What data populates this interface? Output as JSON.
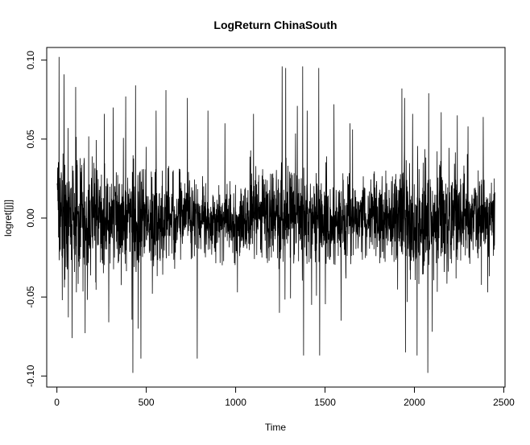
{
  "chart_data": {
    "type": "line",
    "title": "LogReturn ChinaSouth",
    "xlabel": "Time",
    "ylabel": "logret[[j]]",
    "xlim": [
      -57,
      2507
    ],
    "ylim": [
      -0.107,
      0.108
    ],
    "x_ticks": [
      0,
      500,
      1000,
      1500,
      2000,
      2500
    ],
    "x_tick_labels": [
      "0",
      "500",
      "1000",
      "1500",
      "2000",
      "2500"
    ],
    "y_ticks": [
      -0.1,
      -0.05,
      0.0,
      0.05,
      0.1
    ],
    "y_tick_labels": [
      "-0.10",
      "-0.05",
      "0.00",
      "0.05",
      "0.10"
    ],
    "grid": false,
    "legend": "none",
    "series_color": "#000000",
    "series": [
      {
        "n": 2450,
        "x_start": 1,
        "x_step": 1,
        "volatility_profile": [
          [
            0,
            0.024
          ],
          [
            100,
            0.022
          ],
          [
            200,
            0.018
          ],
          [
            300,
            0.018
          ],
          [
            400,
            0.022
          ],
          [
            500,
            0.018
          ],
          [
            600,
            0.016
          ],
          [
            700,
            0.014
          ],
          [
            800,
            0.012
          ],
          [
            900,
            0.012
          ],
          [
            1000,
            0.013
          ],
          [
            1100,
            0.014
          ],
          [
            1200,
            0.016
          ],
          [
            1300,
            0.018
          ],
          [
            1400,
            0.017
          ],
          [
            1500,
            0.015
          ],
          [
            1600,
            0.014
          ],
          [
            1700,
            0.013
          ],
          [
            1800,
            0.015
          ],
          [
            1900,
            0.018
          ],
          [
            2000,
            0.021
          ],
          [
            2100,
            0.021
          ],
          [
            2200,
            0.017
          ],
          [
            2300,
            0.015
          ],
          [
            2400,
            0.013
          ],
          [
            2450,
            0.013
          ]
        ],
        "extreme_points": [
          {
            "x": 12,
            "y": 0.102
          },
          {
            "x": 40,
            "y": 0.091
          },
          {
            "x": 30,
            "y": -0.052
          },
          {
            "x": 85,
            "y": -0.076
          },
          {
            "x": 105,
            "y": 0.083
          },
          {
            "x": 265,
            "y": 0.066
          },
          {
            "x": 290,
            "y": -0.066
          },
          {
            "x": 315,
            "y": 0.07
          },
          {
            "x": 385,
            "y": 0.077
          },
          {
            "x": 425,
            "y": -0.098
          },
          {
            "x": 440,
            "y": 0.084
          },
          {
            "x": 470,
            "y": -0.089
          },
          {
            "x": 455,
            "y": -0.07
          },
          {
            "x": 555,
            "y": 0.068
          },
          {
            "x": 610,
            "y": 0.081
          },
          {
            "x": 730,
            "y": 0.076
          },
          {
            "x": 785,
            "y": -0.089
          },
          {
            "x": 845,
            "y": 0.068
          },
          {
            "x": 940,
            "y": 0.06
          },
          {
            "x": 1010,
            "y": -0.047
          },
          {
            "x": 1100,
            "y": 0.066
          },
          {
            "x": 1260,
            "y": 0.096
          },
          {
            "x": 1280,
            "y": 0.095
          },
          {
            "x": 1245,
            "y": -0.06
          },
          {
            "x": 1345,
            "y": 0.071
          },
          {
            "x": 1375,
            "y": 0.096
          },
          {
            "x": 1380,
            "y": -0.087
          },
          {
            "x": 1400,
            "y": 0.068
          },
          {
            "x": 1425,
            "y": -0.055
          },
          {
            "x": 1465,
            "y": 0.095
          },
          {
            "x": 1470,
            "y": -0.087
          },
          {
            "x": 1550,
            "y": 0.072
          },
          {
            "x": 1590,
            "y": -0.065
          },
          {
            "x": 1640,
            "y": 0.06
          },
          {
            "x": 1930,
            "y": 0.082
          },
          {
            "x": 1945,
            "y": 0.076
          },
          {
            "x": 1950,
            "y": -0.085
          },
          {
            "x": 1990,
            "y": 0.066
          },
          {
            "x": 2015,
            "y": -0.087
          },
          {
            "x": 2075,
            "y": -0.098
          },
          {
            "x": 2080,
            "y": 0.079
          },
          {
            "x": 2100,
            "y": -0.072
          },
          {
            "x": 2150,
            "y": 0.067
          },
          {
            "x": 2240,
            "y": 0.065
          },
          {
            "x": 2300,
            "y": 0.058
          },
          {
            "x": 2385,
            "y": 0.064
          },
          {
            "x": 2410,
            "y": -0.047
          }
        ]
      }
    ]
  }
}
